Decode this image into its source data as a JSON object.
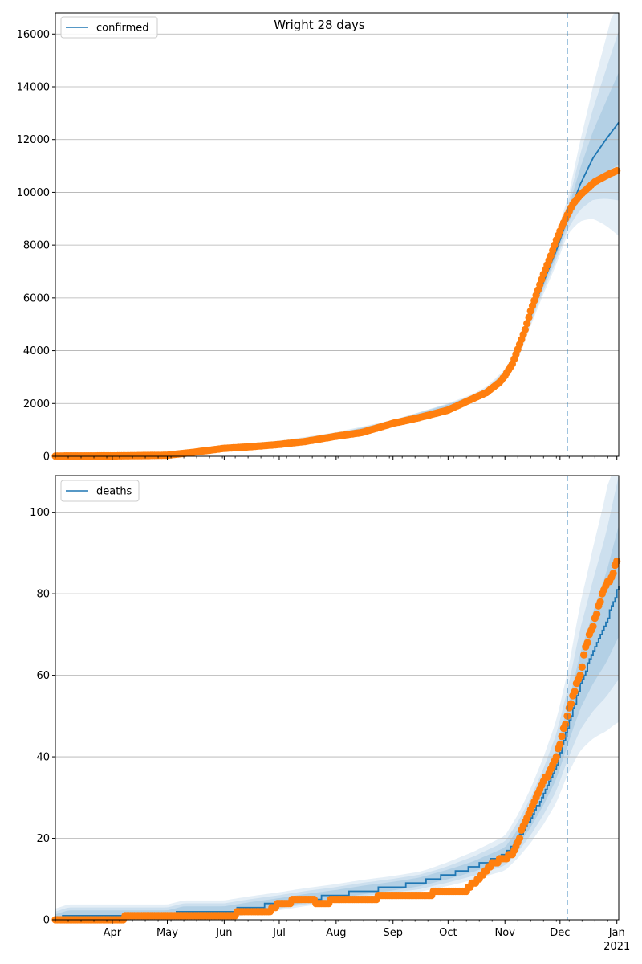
{
  "figure_title": "Wright 28 days",
  "colors": {
    "model": "#1f77b4",
    "observed": "#ff7f0e",
    "band": "#1f77b4",
    "grid": "#b0b0b0"
  },
  "chart_data": [
    {
      "type": "line",
      "legend": [
        "confirmed"
      ],
      "legend_position": "top-left",
      "grid": "y",
      "xlim": [
        "2020-03-01",
        "2021-01-02"
      ],
      "ylim": [
        0,
        16800
      ],
      "yticks": [
        0,
        2000,
        4000,
        6000,
        8000,
        10000,
        12000,
        14000,
        16000
      ],
      "forecast_start": "2020-12-05",
      "series": [
        {
          "name": "confirmed",
          "kind": "model",
          "x": [
            "2020-03-01",
            "2020-04-01",
            "2020-05-01",
            "2020-06-01",
            "2020-07-01",
            "2020-08-01",
            "2020-09-01",
            "2020-10-01",
            "2020-10-15",
            "2020-10-22",
            "2020-11-01",
            "2020-11-08",
            "2020-11-15",
            "2020-11-22",
            "2020-11-29",
            "2020-12-05",
            "2020-12-12",
            "2020-12-19",
            "2020-12-26",
            "2021-01-02"
          ],
          "y": [
            10,
            15,
            40,
            300,
            470,
            790,
            1260,
            1860,
            2200,
            2450,
            3050,
            3900,
            5300,
            6600,
            7800,
            9000,
            10300,
            11300,
            12000,
            12650
          ]
        },
        {
          "name": "confirmed",
          "kind": "observed",
          "x": [
            "2020-03-01",
            "2020-04-01",
            "2020-05-01",
            "2020-05-15",
            "2020-06-01",
            "2020-06-15",
            "2020-07-01",
            "2020-07-15",
            "2020-08-01",
            "2020-08-15",
            "2020-09-01",
            "2020-09-15",
            "2020-10-01",
            "2020-10-15",
            "2020-10-22",
            "2020-10-29",
            "2020-11-01",
            "2020-11-05",
            "2020-11-08",
            "2020-11-12",
            "2020-11-15",
            "2020-11-19",
            "2020-11-22",
            "2020-11-26",
            "2020-11-29",
            "2020-12-02",
            "2020-12-05",
            "2020-12-08",
            "2020-12-12",
            "2020-12-16",
            "2020-12-20",
            "2020-12-24",
            "2020-12-28",
            "2021-01-01"
          ],
          "y": [
            10,
            15,
            40,
            150,
            300,
            360,
            450,
            560,
            760,
            900,
            1250,
            1460,
            1750,
            2200,
            2420,
            2800,
            3050,
            3500,
            4050,
            4800,
            5500,
            6300,
            6900,
            7600,
            8200,
            8700,
            9150,
            9550,
            9900,
            10150,
            10400,
            10550,
            10700,
            10820
          ]
        }
      ]
    },
    {
      "type": "line",
      "legend": [
        "deaths"
      ],
      "legend_position": "top-left",
      "grid": "y",
      "xlim": [
        "2020-03-01",
        "2021-01-02"
      ],
      "ylim": [
        0,
        109
      ],
      "yticks": [
        0,
        20,
        40,
        60,
        80,
        100
      ],
      "xticks": [
        "Apr",
        "May",
        "Jun",
        "Jul",
        "Aug",
        "Sep",
        "Oct",
        "Nov",
        "Dec",
        "Jan"
      ],
      "xticks_dates": [
        "2020-04-01",
        "2020-05-01",
        "2020-06-01",
        "2020-07-01",
        "2020-08-01",
        "2020-09-01",
        "2020-10-01",
        "2020-11-01",
        "2020-12-01",
        "2021-01-01"
      ],
      "year_label": "2021",
      "forecast_start": "2020-12-05",
      "series": [
        {
          "name": "deaths",
          "kind": "model",
          "x": [
            "2020-03-01",
            "2020-03-08",
            "2020-04-01",
            "2020-04-10",
            "2020-05-01",
            "2020-05-10",
            "2020-06-01",
            "2020-06-15",
            "2020-07-01",
            "2020-07-15",
            "2020-08-01",
            "2020-08-15",
            "2020-09-01",
            "2020-09-15",
            "2020-10-01",
            "2020-10-15",
            "2020-11-01",
            "2020-11-08",
            "2020-11-15",
            "2020-11-22",
            "2020-11-29",
            "2020-12-05",
            "2020-12-12",
            "2020-12-19",
            "2020-12-26",
            "2021-01-02"
          ],
          "y": [
            0,
            1,
            1,
            1,
            1,
            2,
            2,
            3,
            4,
            5,
            6,
            7,
            8,
            9,
            11,
            13,
            16,
            20,
            25,
            31,
            38,
            47,
            58,
            66,
            73,
            82
          ]
        },
        {
          "name": "deaths",
          "kind": "observed",
          "x": [
            "2020-03-01",
            "2020-04-01",
            "2020-04-15",
            "2020-05-01",
            "2020-05-15",
            "2020-06-01",
            "2020-06-15",
            "2020-06-25",
            "2020-07-01",
            "2020-07-15",
            "2020-07-25",
            "2020-08-01",
            "2020-08-15",
            "2020-09-01",
            "2020-09-15",
            "2020-10-01",
            "2020-10-10",
            "2020-10-18",
            "2020-10-25",
            "2020-11-01",
            "2020-11-05",
            "2020-11-08",
            "2020-11-12",
            "2020-11-15",
            "2020-11-18",
            "2020-11-22",
            "2020-11-25",
            "2020-11-29",
            "2020-12-02",
            "2020-12-05",
            "2020-12-08",
            "2020-12-12",
            "2020-12-15",
            "2020-12-19",
            "2020-12-22",
            "2020-12-26",
            "2020-12-29",
            "2021-01-01"
          ],
          "y": [
            0,
            0,
            1,
            1,
            1,
            1,
            2,
            2,
            4,
            5,
            4,
            5,
            5,
            6,
            6,
            7,
            7,
            10,
            14,
            15,
            16,
            19,
            24,
            27,
            30,
            34,
            36,
            40,
            45,
            50,
            55,
            60,
            67,
            72,
            77,
            82,
            84,
            88
          ]
        }
      ]
    }
  ]
}
